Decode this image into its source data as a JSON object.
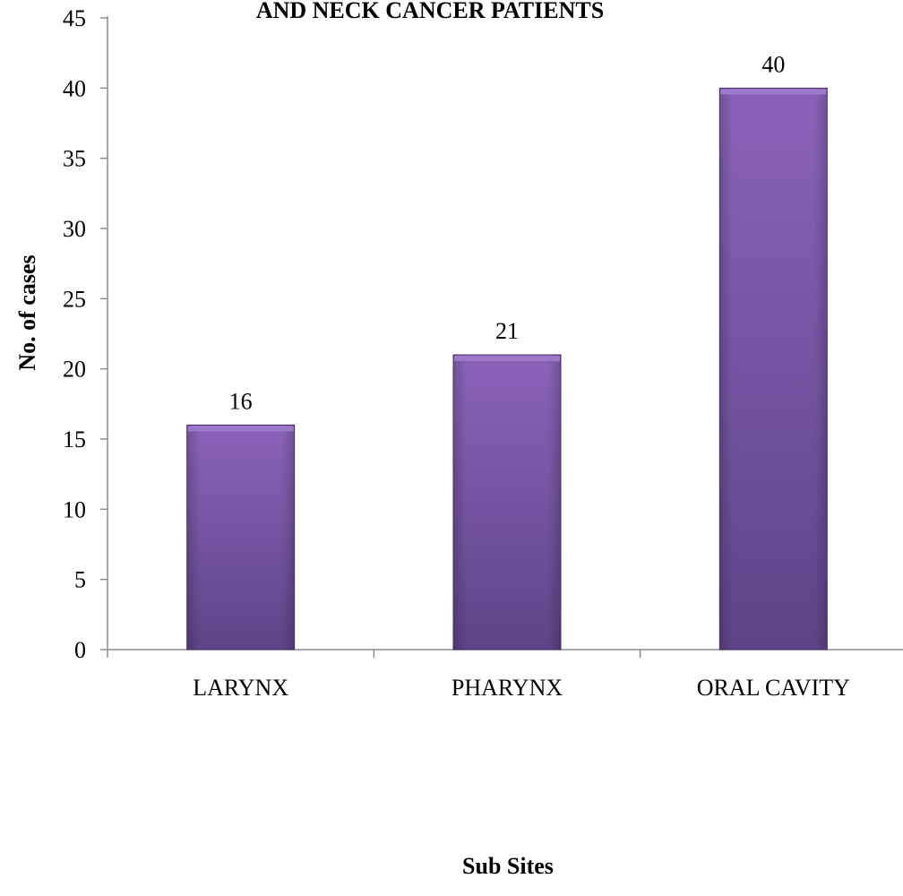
{
  "chart_data": {
    "type": "bar",
    "title": "AND NECK CANCER PATIENTS",
    "xlabel": "Sub Sites",
    "ylabel": "No. of cases",
    "categories": [
      "LARYNX",
      "PHARYNX",
      "ORAL CAVITY"
    ],
    "values": [
      16,
      21,
      40
    ],
    "data_labels": [
      "16",
      "21",
      "40"
    ],
    "ylim": [
      0,
      45
    ],
    "yticks": [
      0,
      5,
      10,
      15,
      20,
      25,
      30,
      35,
      40,
      45
    ],
    "ytick_labels": [
      "0",
      "5",
      "10",
      "15",
      "20",
      "25",
      "30",
      "35",
      "40",
      "45"
    ],
    "grid": false,
    "legend": "none",
    "colors": {
      "bar_top": "#8a63b8",
      "bar_bottom": "#5e4488",
      "bar_edge": "#4b356f",
      "bar_cap": "#9c79c9",
      "axis": "#8c8c8c"
    }
  }
}
